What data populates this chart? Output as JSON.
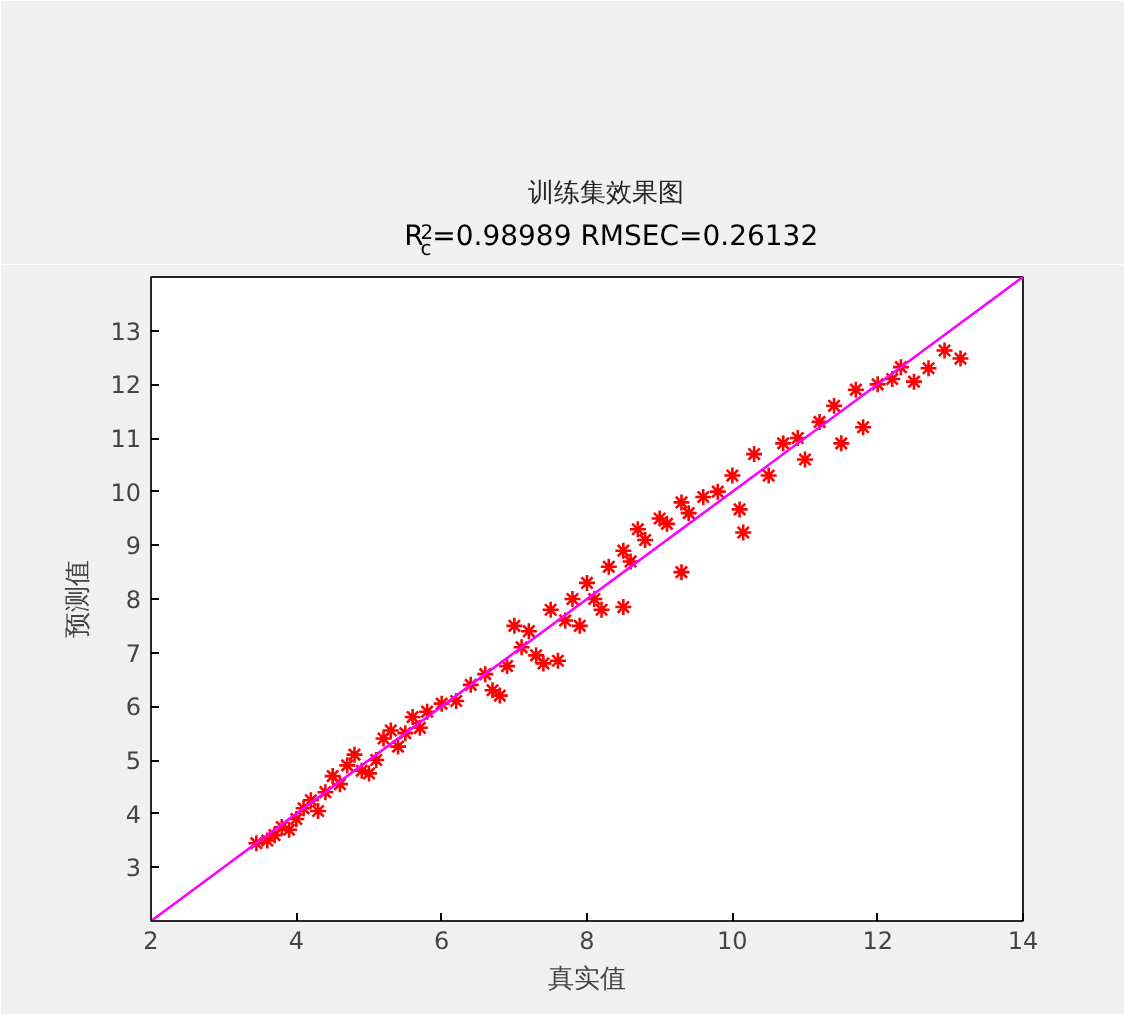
{
  "chart_data": {
    "type": "scatter",
    "title": "训练集效果图",
    "subtitle": "R$^{2}$$_{c}$=0.98989  RMSEC=0.26132",
    "xlabel": "真实值",
    "ylabel": "预测值",
    "xlim": [
      2,
      14
    ],
    "ylim": [
      2,
      14
    ],
    "xticks": [
      2,
      4,
      6,
      8,
      10,
      12,
      14
    ],
    "yticks": [
      3,
      4,
      5,
      6,
      7,
      8,
      9,
      10,
      11,
      12,
      13
    ],
    "grid": false,
    "marker": "cross",
    "series": [
      {
        "color": "#ff0000",
        "x": [
          3.45,
          3.6,
          3.7,
          3.8,
          3.9,
          4.0,
          4.1,
          4.2,
          4.3,
          4.4,
          4.5,
          4.6,
          4.7,
          4.8,
          4.9,
          5.0,
          5.1,
          5.2,
          5.3,
          5.4,
          5.5,
          5.6,
          5.7,
          5.8,
          6.0,
          6.2,
          6.4,
          6.6,
          6.7,
          6.8,
          6.9,
          7.0,
          7.1,
          7.2,
          7.3,
          7.4,
          7.5,
          7.6,
          7.7,
          7.8,
          7.9,
          8.0,
          8.1,
          8.2,
          8.3,
          8.5,
          8.5,
          8.6,
          8.7,
          8.8,
          9.0,
          9.1,
          9.3,
          9.3,
          9.4,
          9.6,
          9.8,
          10.0,
          10.1,
          10.15,
          10.3,
          10.5,
          10.7,
          10.9,
          11.0,
          11.2,
          11.4,
          11.5,
          11.7,
          11.8,
          12.0,
          12.2,
          12.32,
          12.5,
          12.7,
          12.92,
          13.14
        ],
        "values": [
          3.45,
          3.5,
          3.6,
          3.75,
          3.7,
          3.9,
          4.1,
          4.25,
          4.05,
          4.4,
          4.7,
          4.55,
          4.9,
          5.1,
          4.8,
          4.75,
          5.0,
          5.4,
          5.55,
          5.25,
          5.5,
          5.8,
          5.6,
          5.9,
          6.05,
          6.1,
          6.4,
          6.6,
          6.3,
          6.2,
          6.75,
          7.5,
          7.1,
          7.4,
          6.95,
          6.8,
          7.8,
          6.85,
          7.6,
          8.0,
          7.5,
          8.3,
          8.0,
          7.8,
          8.6,
          8.9,
          7.85,
          8.7,
          9.3,
          9.1,
          9.5,
          9.4,
          9.8,
          8.5,
          9.6,
          9.9,
          10.0,
          10.3,
          9.67,
          9.24,
          10.7,
          10.3,
          10.9,
          11.0,
          10.6,
          11.3,
          11.6,
          10.9,
          11.9,
          11.2,
          12.0,
          12.1,
          12.32,
          12.05,
          12.3,
          12.63,
          12.48
        ]
      },
      {
        "type": "line",
        "color": "#ff00ff",
        "x": [
          2,
          14
        ],
        "values": [
          2,
          14
        ],
        "line_style": "solid",
        "marker": "none"
      }
    ]
  }
}
